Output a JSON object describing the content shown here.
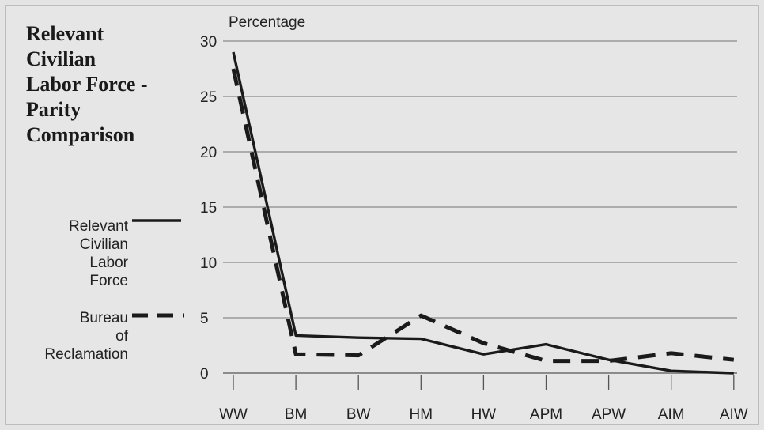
{
  "chart_data": {
    "type": "line",
    "title": "Relevant Civilian Labor Force - Parity Comparison",
    "ylabel": "Percentage",
    "xlabel": "",
    "categories": [
      "WW",
      "BM",
      "BW",
      "HM",
      "HW",
      "APM",
      "APW",
      "AIM",
      "AIW"
    ],
    "ylim": [
      0,
      30
    ],
    "yticks": [
      0,
      5,
      10,
      15,
      20,
      25,
      30
    ],
    "grid": true,
    "legend_position": "left",
    "series": [
      {
        "name": "Relevant Civilian Labor Force",
        "style": "solid",
        "values": [
          29,
          3.4,
          3.2,
          3.1,
          1.7,
          2.6,
          1.2,
          0.2,
          0
        ]
      },
      {
        "name": "Bureau of Reclamation",
        "style": "dashed",
        "values": [
          27.5,
          1.7,
          1.6,
          5.2,
          2.7,
          1.1,
          1.1,
          1.8,
          1.2
        ]
      }
    ]
  },
  "colors": {
    "background": "#e6e6e6",
    "line": "#1a1a1a",
    "grid": "#8a8a8a"
  }
}
